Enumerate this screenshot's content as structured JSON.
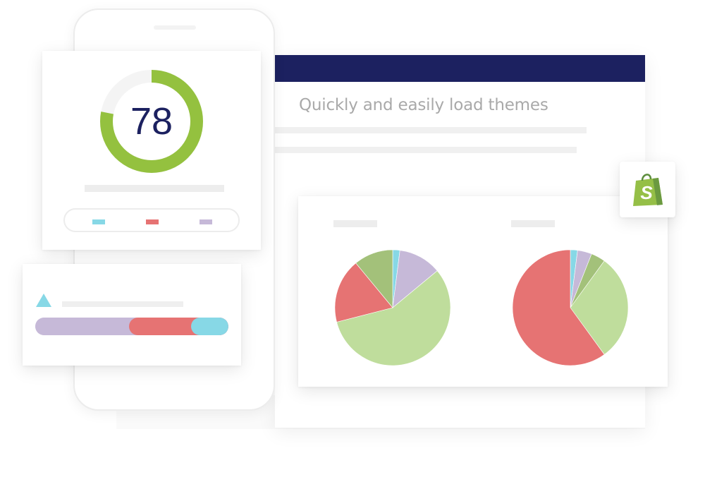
{
  "browser": {
    "heading": "Quickly and easily load themes",
    "bar_color": "#1c2160"
  },
  "score_card": {
    "score": "78",
    "score_percent": 78,
    "ring_color": "#94c13f",
    "legend": [
      {
        "icon": "legend-swatch",
        "color": "#87d8e6"
      },
      {
        "icon": "legend-swatch",
        "color": "#e67373"
      },
      {
        "icon": "legend-swatch",
        "color": "#c6b9d8"
      }
    ]
  },
  "progress_card": {
    "icon": "triangle-icon",
    "icon_color": "#87d8e6",
    "segments": [
      {
        "color": "#c6b9d8",
        "share": 0.53
      },
      {
        "color": "#e67373",
        "share": 0.32
      },
      {
        "color": "#87d8e6",
        "share": 0.15
      }
    ]
  },
  "shopify": {
    "icon": "shopify-bag-icon",
    "color": "#95bf47"
  },
  "chart_data": [
    {
      "type": "pie",
      "title": "",
      "series": [
        {
          "color": "#87d8e6",
          "value": 2
        },
        {
          "color": "#c6b9d8",
          "value": 12
        },
        {
          "color": "#bfdd9c",
          "value": 57
        },
        {
          "color": "#e67373",
          "value": 18
        },
        {
          "color": "#a3c17a",
          "value": 11
        }
      ]
    },
    {
      "type": "pie",
      "title": "",
      "series": [
        {
          "color": "#87d8e6",
          "value": 2
        },
        {
          "color": "#c6b9d8",
          "value": 4
        },
        {
          "color": "#a3c17a",
          "value": 4
        },
        {
          "color": "#bfdd9c",
          "value": 30
        },
        {
          "color": "#e67373",
          "value": 60
        }
      ]
    }
  ]
}
